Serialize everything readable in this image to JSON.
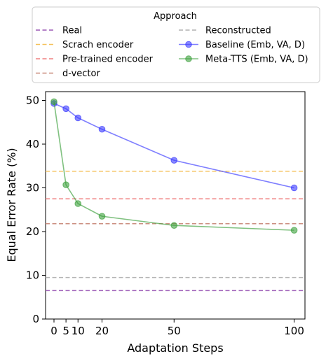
{
  "chart_data": {
    "type": "line",
    "xlabel": "Adaptation Steps",
    "ylabel": "Equal Error Rate (%)",
    "xlim": [
      -3.5,
      104.5
    ],
    "ylim": [
      0,
      52
    ],
    "xticks": [
      0,
      5,
      10,
      20,
      50,
      100
    ],
    "yticks": [
      0,
      10,
      20,
      30,
      40,
      50
    ],
    "grid": false,
    "legend": {
      "title": "Approach",
      "placement": "top-outside",
      "columns": 2
    },
    "baselines": [
      {
        "name": "Real",
        "value": 6.5,
        "color": "#9b59b6"
      },
      {
        "name": "Scrach encoder",
        "value": 33.8,
        "color": "#f5c15a"
      },
      {
        "name": "Pre-trained encoder",
        "value": 27.5,
        "color": "#f08080"
      },
      {
        "name": "d-vector",
        "value": 21.8,
        "color": "#c98a7a"
      },
      {
        "name": "Reconstructed",
        "value": 9.5,
        "color": "#b0b0b0"
      }
    ],
    "series": [
      {
        "name": "Baseline (Emb, VA, D)",
        "color": "#3b3bff",
        "x": [
          0,
          5,
          10,
          20,
          50,
          100
        ],
        "values": [
          49.3,
          48.1,
          46.0,
          43.4,
          36.3,
          30.0
        ]
      },
      {
        "name": "Meta-TTS (Emb, VA, D)",
        "color": "#3ca03c",
        "x": [
          0,
          5,
          10,
          20,
          50,
          100
        ],
        "values": [
          49.7,
          30.7,
          26.4,
          23.5,
          21.4,
          20.3
        ]
      }
    ]
  }
}
